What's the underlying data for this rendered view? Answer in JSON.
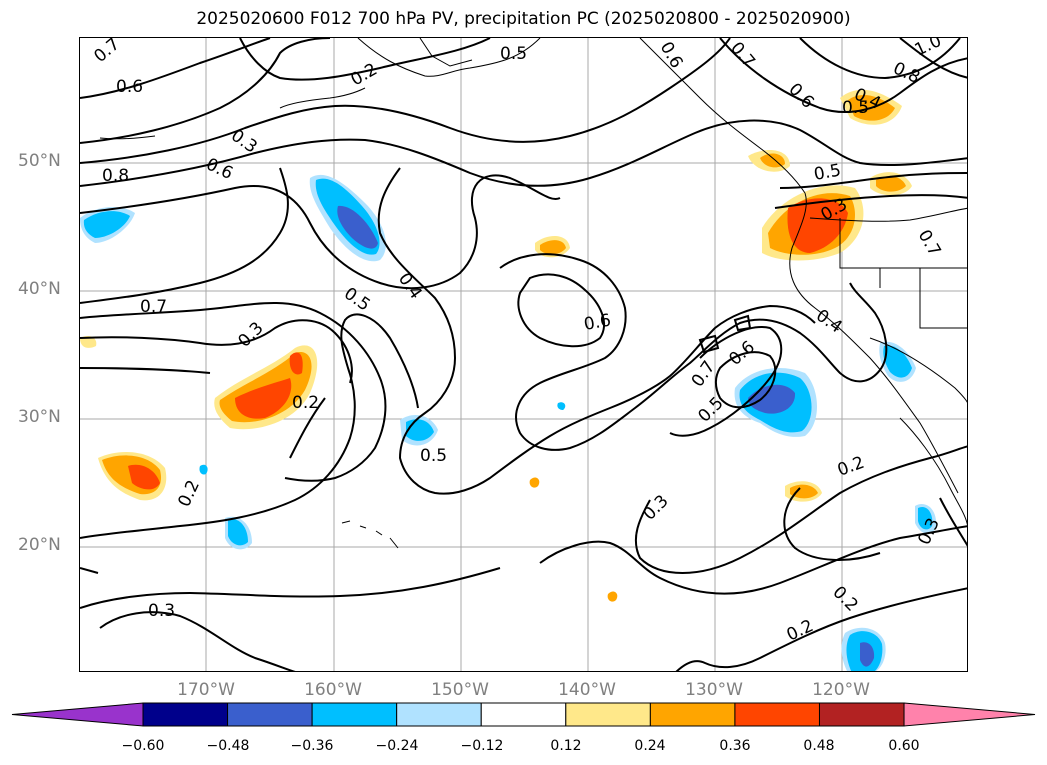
{
  "title": "2025020600 F012 700 hPa PV, precipitation PC (2025020800 - 2025020900)",
  "latitude_labels": [
    "50°N",
    "40°N",
    "30°N",
    "20°N"
  ],
  "longitude_labels": [
    "170°W",
    "160°W",
    "150°W",
    "140°W",
    "130°W",
    "120°W"
  ],
  "contour_labels": [
    "0.7",
    "0.6",
    "0.2",
    "0.5",
    "0.6",
    "0.7",
    "1.0",
    "0.8",
    "0.6",
    "0.4",
    "0.5",
    "0.3",
    "0.6",
    "0.8",
    "0.5",
    "0.3",
    "0.7",
    "0.4",
    "0.7",
    "0.5",
    "0.6",
    "0.4",
    "0.3",
    "0.2",
    "0.6",
    "0.7",
    "0.5",
    "0.5",
    "0.2",
    "0.2",
    "0.3",
    "0.3",
    "0.3",
    "0.2",
    "0.2"
  ],
  "colorbar": {
    "ticks": [
      "−0.60",
      "−0.48",
      "−0.36",
      "−0.24",
      "−0.12",
      "0.12",
      "0.24",
      "0.36",
      "0.48",
      "0.60"
    ],
    "colors": [
      "#9933cc",
      "#00008b",
      "#3a5fcd",
      "#00bfff",
      "#b0e2ff",
      "#ffffff",
      "#ffe88a",
      "#ffa500",
      "#ff4500",
      "#b22222",
      "#ff82ab"
    ]
  },
  "colors": {
    "grid": "#a8a8a8",
    "axis_label": "#808080"
  }
}
